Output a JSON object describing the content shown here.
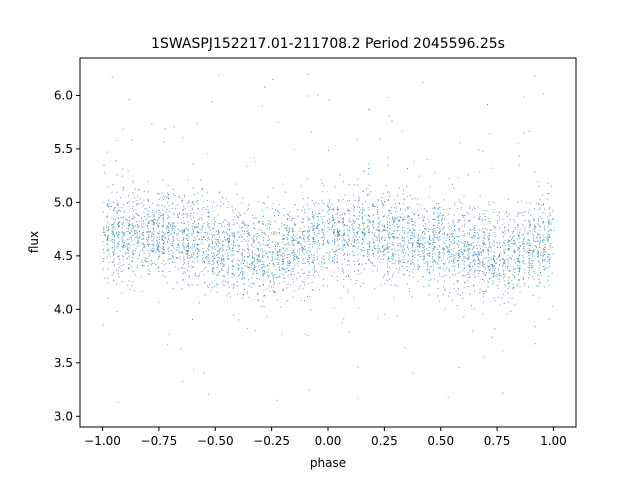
{
  "chart_data": {
    "type": "scatter",
    "title": "1SWASPJ152217.01-211708.2 Period 2045596.25s",
    "xlabel": "phase",
    "ylabel": "flux",
    "xlim": [
      -1.1,
      1.1
    ],
    "ylim": [
      2.9,
      6.35
    ],
    "xticks": [
      -1.0,
      -0.75,
      -0.5,
      -0.25,
      0.0,
      0.25,
      0.5,
      0.75,
      1.0
    ],
    "xtick_labels": [
      "−1.00",
      "−0.75",
      "−0.50",
      "−0.25",
      "0.00",
      "0.25",
      "0.50",
      "0.75",
      "1.00"
    ],
    "yticks": [
      3.0,
      3.5,
      4.0,
      4.5,
      5.0,
      5.5,
      6.0
    ],
    "ytick_labels": [
      "3.0",
      "3.5",
      "4.0",
      "4.5",
      "5.0",
      "5.5",
      "6.0"
    ],
    "grid": false,
    "marker_color": "#1f77b4",
    "series": [
      {
        "x_range": [
          -1.0,
          1.0
        ],
        "approx_count": 20000,
        "flux_median": 4.65,
        "flux_core_range": [
          4.2,
          5.1
        ],
        "flux_full_range": [
          3.05,
          6.25
        ],
        "profile": [
          {
            "phase": -1.0,
            "flux_median": 4.7
          },
          {
            "phase": -0.75,
            "flux_median": 4.72
          },
          {
            "phase": -0.5,
            "flux_median": 4.6
          },
          {
            "phase": -0.25,
            "flux_median": 4.5
          },
          {
            "phase": 0.0,
            "flux_median": 4.7
          },
          {
            "phase": 0.25,
            "flux_median": 4.72
          },
          {
            "phase": 0.5,
            "flux_median": 4.6
          },
          {
            "phase": 0.75,
            "flux_median": 4.5
          },
          {
            "phase": 1.0,
            "flux_median": 4.7
          }
        ]
      }
    ]
  }
}
